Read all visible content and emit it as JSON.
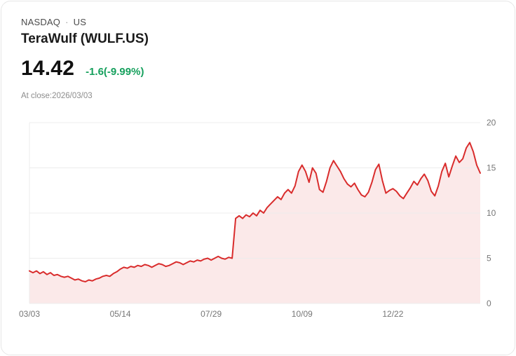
{
  "header": {
    "exchange": "NASDAQ",
    "separator": "·",
    "region": "US",
    "title": "TeraWulf (WULF.US)",
    "price": "14.42",
    "change": "-1.6(-9.99%)",
    "close_note": "At close:2026/03/03"
  },
  "colors": {
    "line": "#d92c2c",
    "area": "#fbe9e9",
    "change": "#16a05d",
    "grid": "#ececec",
    "axis_text": "#767676"
  },
  "chart_data": {
    "type": "area",
    "title": "TeraWulf (WULF.US) 1-year price chart",
    "xlabel": "",
    "ylabel": "",
    "ylim": [
      0,
      20
    ],
    "y_ticks": [
      0,
      5,
      10,
      15,
      20
    ],
    "x_tick_labels": [
      "03/03",
      "05/14",
      "07/29",
      "10/09",
      "12/22"
    ],
    "x_tick_indices": [
      0,
      26,
      52,
      78,
      104
    ],
    "grid": true,
    "legend": false,
    "values": [
      3.6,
      3.4,
      3.6,
      3.3,
      3.5,
      3.2,
      3.4,
      3.1,
      3.2,
      3.0,
      2.9,
      3.0,
      2.8,
      2.6,
      2.7,
      2.5,
      2.4,
      2.6,
      2.5,
      2.7,
      2.8,
      3.0,
      3.1,
      3.0,
      3.3,
      3.5,
      3.8,
      4.0,
      3.9,
      4.1,
      4.0,
      4.2,
      4.1,
      4.3,
      4.2,
      4.0,
      4.2,
      4.4,
      4.3,
      4.1,
      4.2,
      4.4,
      4.6,
      4.5,
      4.3,
      4.5,
      4.7,
      4.6,
      4.8,
      4.7,
      4.9,
      5.0,
      4.8,
      5.0,
      5.2,
      5.0,
      4.9,
      5.1,
      5.0,
      9.4,
      9.7,
      9.4,
      9.8,
      9.6,
      10.0,
      9.7,
      10.3,
      10.0,
      10.6,
      11.0,
      11.4,
      11.8,
      11.5,
      12.2,
      12.6,
      12.2,
      13.0,
      14.6,
      15.3,
      14.6,
      13.4,
      15.0,
      14.4,
      12.6,
      12.3,
      13.5,
      15.0,
      15.8,
      15.2,
      14.6,
      13.8,
      13.2,
      12.9,
      13.3,
      12.6,
      12.0,
      11.8,
      12.3,
      13.4,
      14.8,
      15.4,
      13.6,
      12.2,
      12.5,
      12.7,
      12.4,
      11.9,
      11.6,
      12.2,
      12.8,
      13.5,
      13.1,
      13.8,
      14.3,
      13.6,
      12.4,
      11.9,
      13.0,
      14.6,
      15.5,
      14.0,
      15.2,
      16.3,
      15.6,
      16.0,
      17.2,
      17.8,
      16.8,
      15.3,
      14.42
    ]
  }
}
